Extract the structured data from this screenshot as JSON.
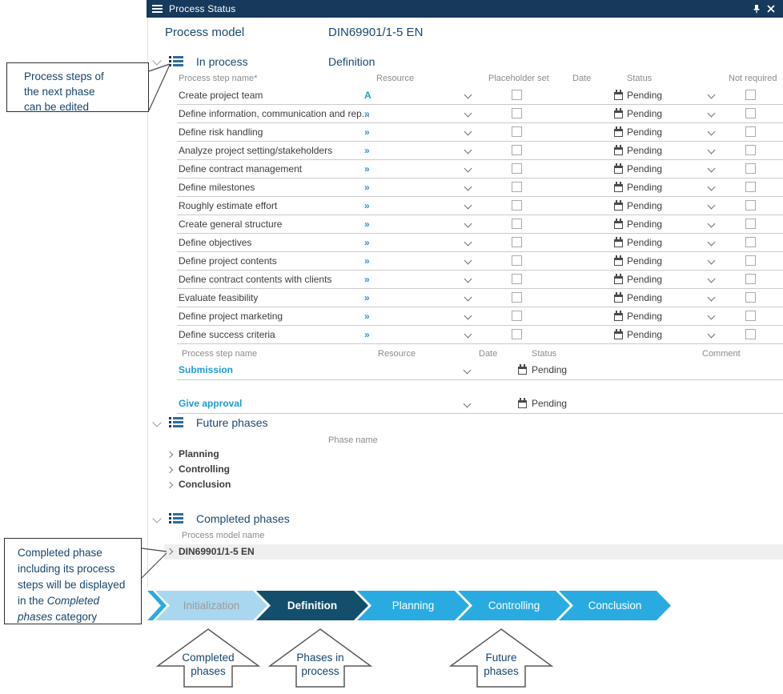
{
  "titlebar": {
    "title": "Process Status"
  },
  "header": {
    "label": "Process model",
    "value": "DIN69901/1-5 EN"
  },
  "note1": {
    "l1": "Process steps of",
    "l2": "the next phase",
    "l3": "can be edited"
  },
  "note2": {
    "l1": "Completed phase",
    "l2": "including its process",
    "l3": "steps will be displayed",
    "l4_pre": "in the ",
    "l4_it": "Completed",
    "l5_it": "phases",
    "l5_post": " category"
  },
  "in_process": {
    "title": "In process",
    "phase": "Definition",
    "headers": {
      "name": "Process step name*",
      "resource": "Resource",
      "placeholder": "Placeholder set",
      "date": "Date",
      "status": "Status",
      "not_required": "Not required"
    },
    "status_value": "Pending",
    "rows": [
      {
        "name": "Create project team",
        "resource": "A"
      },
      {
        "name": "Define information, communication and rep...",
        "resource": "»"
      },
      {
        "name": "Define risk handling",
        "resource": "»"
      },
      {
        "name": "Analyze project setting/stakeholders",
        "resource": "»"
      },
      {
        "name": "Define contract management",
        "resource": "»"
      },
      {
        "name": "Define milestones",
        "resource": "»"
      },
      {
        "name": "Roughly estimate effort",
        "resource": "»"
      },
      {
        "name": "Create general structure",
        "resource": "»"
      },
      {
        "name": "Define objectives",
        "resource": "»"
      },
      {
        "name": "Define project contents",
        "resource": "»"
      },
      {
        "name": "Define contract contents with clients",
        "resource": "»"
      },
      {
        "name": "Evaluate feasibility",
        "resource": "»"
      },
      {
        "name": "Define project marketing",
        "resource": "»"
      },
      {
        "name": "Define success criteria",
        "resource": "»"
      }
    ]
  },
  "approval": {
    "headers": {
      "name": "Process step name",
      "resource": "Resource",
      "date": "Date",
      "status": "Status",
      "comment": "Comment"
    },
    "rows": [
      {
        "name": "Submission",
        "status": "Pending"
      },
      {
        "name": "Give approval",
        "status": "Pending"
      }
    ]
  },
  "future": {
    "title": "Future phases",
    "column": "Phase name",
    "rows": [
      "Planning",
      "Controlling",
      "Conclusion"
    ]
  },
  "completed": {
    "title": "Completed phases",
    "column": "Process model name",
    "rows": [
      "DIN69901/1-5 EN"
    ]
  },
  "flow": {
    "phases": [
      {
        "label": "Initialization",
        "state": "completed"
      },
      {
        "label": "Definition",
        "state": "current"
      },
      {
        "label": "Planning",
        "state": "future"
      },
      {
        "label": "Controlling",
        "state": "future"
      },
      {
        "label": "Conclusion",
        "state": "future"
      }
    ]
  },
  "flow_callouts": [
    {
      "l1": "Completed",
      "l2": "phases"
    },
    {
      "l1": "Phases in",
      "l2": "process"
    },
    {
      "l1": "Future",
      "l2": "phases"
    }
  ],
  "colors": {
    "titlebar": "#16395C",
    "heading": "#1A486F",
    "link": "#1E9BD7",
    "phase_completed": "#A9D7EF",
    "phase_current": "#134F6D",
    "phase_future": "#29ABE2"
  }
}
